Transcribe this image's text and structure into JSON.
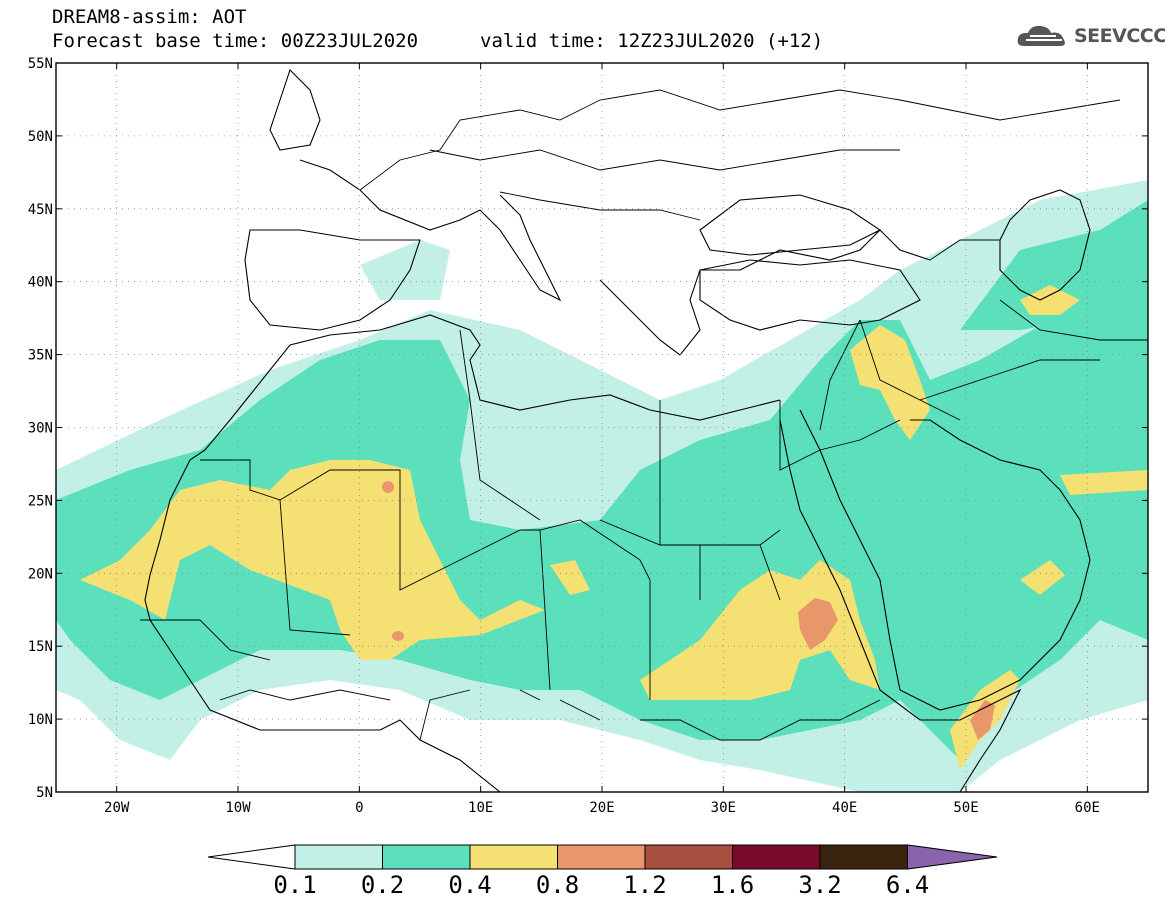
{
  "header": {
    "title": "DREAM8-assim: AOT",
    "base_time": "Forecast base time: 00Z23JUL2020",
    "valid_time": "valid time: 12Z23JUL2020 (+12)",
    "logo_text": "SEEVCCC"
  },
  "map": {
    "projection": "lat-lon",
    "lon_range": [
      -25,
      65
    ],
    "lat_range": [
      5,
      55
    ],
    "lat_labels": [
      "55N",
      "50N",
      "45N",
      "40N",
      "35N",
      "30N",
      "25N",
      "20N",
      "15N",
      "10N",
      "5N"
    ],
    "lon_labels": [
      "20W",
      "10W",
      "0",
      "10E",
      "20E",
      "30E",
      "40E",
      "50E",
      "60E"
    ],
    "grid": "dotted"
  },
  "colorbar": {
    "thresholds": [
      "0.1",
      "0.2",
      "0.4",
      "0.8",
      "1.2",
      "1.6",
      "3.2",
      "6.4"
    ],
    "colors": [
      "#ffffff",
      "#c2efe6",
      "#5ce0bc",
      "#f5e073",
      "#e8966a",
      "#a85040",
      "#7a0a2a",
      "#3a2410",
      "#8a64aa"
    ]
  }
}
